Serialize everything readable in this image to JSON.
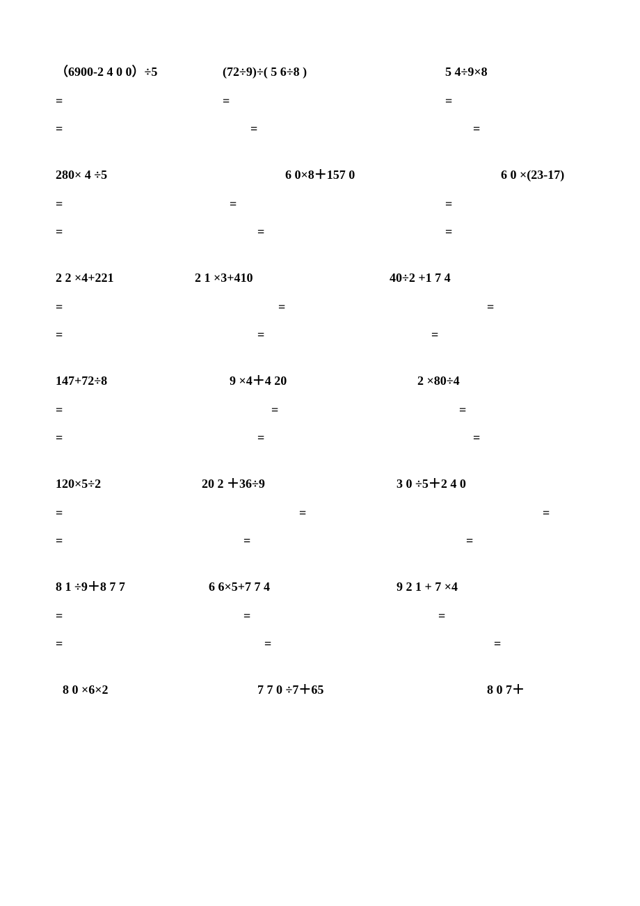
{
  "page": {
    "background_color": "#ffffff",
    "text_color": "#000000",
    "font_family": "Times New Roman",
    "font_weight": "bold",
    "font_size": 18
  },
  "sections": [
    {
      "problems": [
        "（6900-2 4  0 0）÷5",
        "(72÷9)÷( 5 6÷8 )",
        "5 4÷9×8"
      ],
      "problem_positions": [
        0,
        240,
        560
      ],
      "eq_rows": [
        [
          0,
          240,
          560
        ],
        [
          0,
          280,
          600
        ]
      ]
    },
    {
      "problems": [
        "280×    4   ÷5",
        "6 0×8＋157 0",
        "6  0 ×(23-17)"
      ],
      "problem_positions": [
        0,
        330,
        640
      ],
      "eq_rows": [
        [
          0,
          250,
          560
        ],
        [
          0,
          290,
          560
        ]
      ]
    },
    {
      "problems": [
        "2 2 ×4+221",
        "2 1 ×3+410",
        "40÷2 +1 7 4"
      ],
      "problem_positions": [
        0,
        200,
        480
      ],
      "eq_rows": [
        [
          0,
          320,
          620
        ],
        [
          0,
          290,
          540
        ]
      ]
    },
    {
      "problems": [
        "147+72÷8",
        "9 ×4＋4 20",
        "2 ×80÷4"
      ],
      "problem_positions": [
        0,
        250,
        520
      ],
      "eq_rows": [
        [
          0,
          310,
          580
        ],
        [
          0,
          290,
          600
        ]
      ]
    },
    {
      "problems": [
        "120×5÷2",
        "20 2 ＋36÷9",
        "3 0 ÷5＋2 4 0"
      ],
      "problem_positions": [
        0,
        210,
        490
      ],
      "eq_rows": [
        [
          0,
          350,
          700
        ],
        [
          0,
          270,
          590
        ]
      ]
    },
    {
      "problems": [
        "8 1 ÷9＋8 7 7",
        "6 6×5+7 7 4",
        "9 2 1 + 7 ×4"
      ],
      "problem_positions": [
        0,
        220,
        490
      ],
      "eq_rows": [
        [
          0,
          270,
          550
        ],
        [
          0,
          300,
          630
        ]
      ]
    },
    {
      "problems": [
        "8  0 ×6×2",
        "7 7 0 ÷7＋65",
        "8 0 7＋"
      ],
      "problem_positions": [
        10,
        290,
        620
      ],
      "eq_rows": []
    }
  ],
  "equals_symbol": "="
}
